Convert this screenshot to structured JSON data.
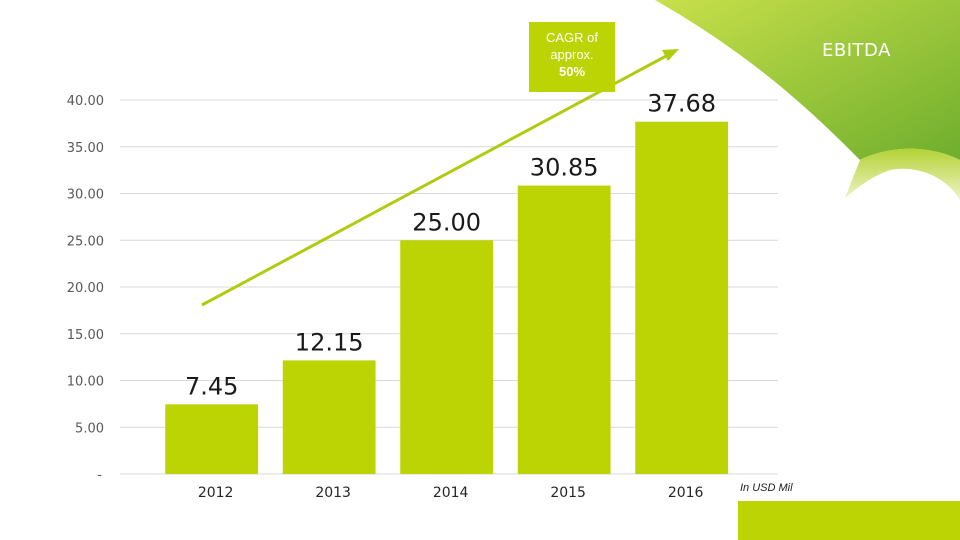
{
  "chart_data": {
    "type": "bar",
    "title": "EBITDA",
    "unit_note": "In USD Mil",
    "categories": [
      "2012",
      "2013",
      "2014",
      "2015",
      "2016"
    ],
    "values": [
      7.45,
      12.15,
      25.0,
      30.85,
      37.68
    ],
    "data_labels": [
      "7.45",
      "12.15",
      "25.00",
      "30.85",
      "37.68"
    ],
    "ylim": [
      0,
      40
    ],
    "yticks": [
      0,
      5,
      10,
      15,
      20,
      25,
      30,
      35,
      40
    ],
    "ytick_labels": [
      "-",
      "5.00",
      "10.00",
      "15.00",
      "20.00",
      "25.00",
      "30.00",
      "35.00",
      "40.00"
    ],
    "grid": true,
    "xlabel": "",
    "ylabel": "",
    "annotation": {
      "lines": [
        "CAGR of",
        "approx.",
        "50%"
      ]
    }
  },
  "colors": {
    "bar": "#bcd304",
    "arrow": "#b0cb10",
    "grid": "#d9d9d9",
    "accent_dark": "#7cb82f",
    "accent_light": "#c8e04a"
  }
}
